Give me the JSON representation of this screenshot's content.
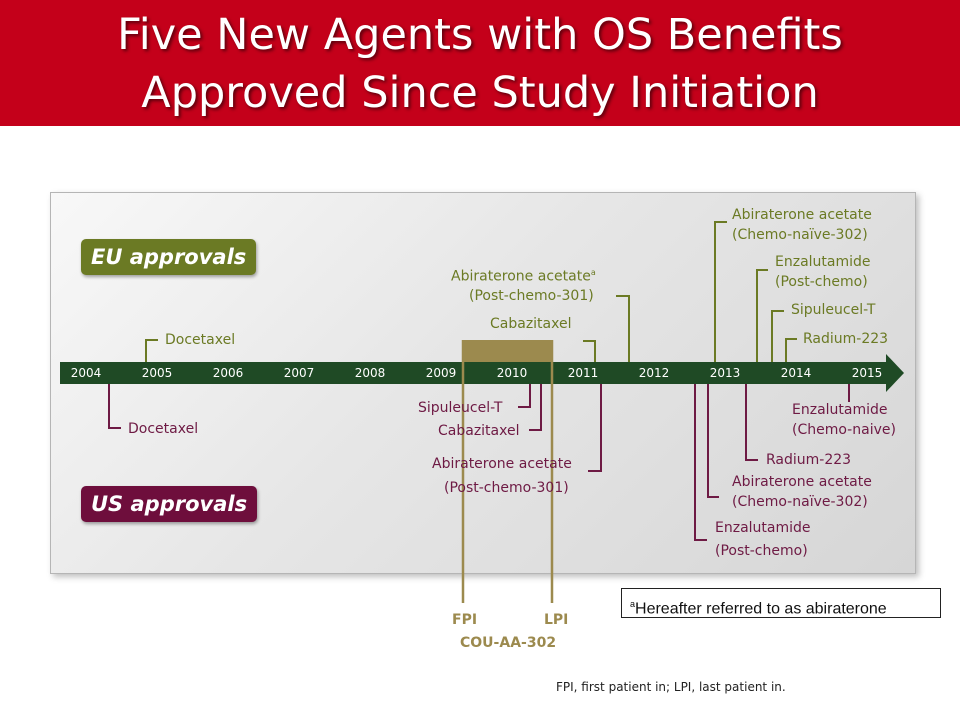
{
  "title": {
    "line1": "Five New Agents with OS Benefits",
    "line2": "Approved Since Study Initiation"
  },
  "eu_badge": "EU approvals",
  "us_badge": "US approvals",
  "years": [
    "2004",
    "2005",
    "2006",
    "2007",
    "2008",
    "2009",
    "2010",
    "2011",
    "2012",
    "2013",
    "2014",
    "2015"
  ],
  "eu_labels": {
    "docetaxel": "Docetaxel",
    "cabazitaxel": "Cabazitaxel",
    "abiraterone_post_line1": "Abiraterone acetate",
    "abiraterone_post_sup": "a",
    "abiraterone_post_line2": "(Post-chemo-301)",
    "abiraterone_naive_line1": "Abiraterone acetate",
    "abiraterone_naive_line2": "(Chemo-naïve-302)",
    "enzalutamide_post_line1": "Enzalutamide",
    "enzalutamide_post_line2": "(Post-chemo)",
    "sipuleucel": "Sipuleucel-T",
    "radium": "Radium-223"
  },
  "us_labels": {
    "docetaxel": "Docetaxel",
    "sipuleucel": "Sipuleucel-T",
    "cabazitaxel": "Cabazitaxel",
    "abiraterone_post_line1": "Abiraterone acetate",
    "abiraterone_post_line2": "(Post-chemo-301)",
    "radium": "Radium-223",
    "abiraterone_naive_line1": "Abiraterone acetate",
    "abiraterone_naive_line2": "(Chemo-naïve-302)",
    "enzalutamide_post_line1": "Enzalutamide",
    "enzalutamide_post_line2": "(Post-chemo)",
    "enzalutamide_naive_line1": "Enzalutamide",
    "enzalutamide_naive_line2": "(Chemo-naive)"
  },
  "study": {
    "fpi": "FPI",
    "lpi": "LPI",
    "name": "COU-AA-302"
  },
  "footnote": {
    "marker": "a",
    "text": "Hereafter referred to as abiraterone"
  },
  "abbreviations": "FPI, first patient in; LPI, last patient in.",
  "colors": {
    "title_bg": "#c4001a",
    "timeline": "#1f4a25",
    "eu": "#6b7a24",
    "us": "#6e1a44",
    "study": "#9c8a4e"
  }
}
